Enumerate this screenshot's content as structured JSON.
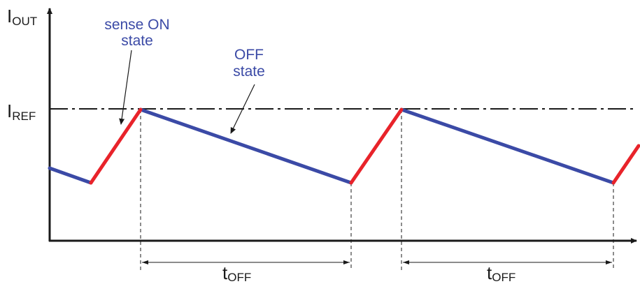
{
  "labels": {
    "y_axis_main": "I",
    "y_axis_sub": "OUT",
    "ref_main": "I",
    "ref_sub": "REF",
    "toff_main": "t",
    "toff_sub": "OFF",
    "on_state_line1": "sense ON",
    "on_state_line2": "state",
    "off_state_line1": "OFF",
    "off_state_line2": "state"
  },
  "colors": {
    "on_segment": "#e8232a",
    "off_segment": "#3b4aa6",
    "annotation_text": "#3b4aa6",
    "axis": "#1a1a1a"
  }
}
